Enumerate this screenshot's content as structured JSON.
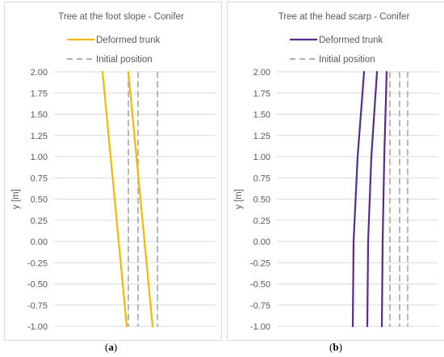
{
  "chart_data": [
    {
      "type": "line",
      "panel_label": "a",
      "title": "Tree at the foot slope - Conifer",
      "ylabel": "y [m]",
      "ylim": [
        -1.0,
        2.0
      ],
      "yticks": [
        "2.00",
        "1.75",
        "1.50",
        "1.25",
        "1.00",
        "0.75",
        "0.50",
        "0.25",
        "0.00",
        "-0.25",
        "-0.50",
        "-0.75",
        "-1.00"
      ],
      "xlim": [
        -1.0,
        1.0
      ],
      "legend_position": "top",
      "grid": true,
      "series": [
        {
          "name": "Deformed trunk",
          "color": "#F5B800",
          "dash": "solid",
          "lines": [
            {
              "x": [
                -0.4,
                -0.3,
                -0.2,
                -0.1
              ],
              "y": [
                2.0,
                1.0,
                0.0,
                -1.0
              ]
            },
            {
              "x": [
                -0.08,
                0.02,
                0.12,
                0.22
              ],
              "y": [
                2.0,
                1.0,
                0.0,
                -1.0
              ]
            }
          ]
        },
        {
          "name": "Initial position",
          "color": "#A6A6A6",
          "dash": "dashed",
          "lines": [
            {
              "x": [
                -0.08,
                -0.08
              ],
              "y": [
                2.0,
                -1.0
              ]
            },
            {
              "x": [
                0.04,
                0.04
              ],
              "y": [
                2.0,
                -1.0
              ]
            },
            {
              "x": [
                0.28,
                0.28
              ],
              "y": [
                2.0,
                -1.0
              ]
            }
          ]
        }
      ]
    },
    {
      "type": "line",
      "panel_label": "b",
      "title": "Tree at the head scarp  - Conifer",
      "ylabel": "y [m]",
      "ylim": [
        -1.0,
        2.0
      ],
      "yticks": [
        "2.00",
        "1.75",
        "1.50",
        "1.25",
        "1.00",
        "0.75",
        "0.50",
        "0.25",
        "0.00",
        "-0.25",
        "-0.50",
        "-0.75",
        "-1.00"
      ],
      "xlim": [
        -1.0,
        1.0
      ],
      "legend_position": "top",
      "grid": true,
      "series": [
        {
          "name": "Deformed trunk",
          "color": "#5B2A8C",
          "dash": "solid",
          "lines": [
            {
              "x": [
                0.08,
                0.0,
                -0.05,
                -0.06
              ],
              "y": [
                2.0,
                1.0,
                0.0,
                -1.0
              ]
            },
            {
              "x": [
                0.24,
                0.17,
                0.13,
                0.12
              ],
              "y": [
                2.0,
                1.0,
                0.0,
                -1.0
              ]
            },
            {
              "x": [
                0.36,
                0.33,
                0.31,
                0.3
              ],
              "y": [
                2.0,
                1.0,
                0.0,
                -1.0
              ]
            }
          ]
        },
        {
          "name": "Initial position",
          "color": "#A6A6A6",
          "dash": "dashed",
          "lines": [
            {
              "x": [
                0.4,
                0.4
              ],
              "y": [
                2.0,
                -1.0
              ]
            },
            {
              "x": [
                0.52,
                0.52
              ],
              "y": [
                2.0,
                -1.0
              ]
            },
            {
              "x": [
                0.62,
                0.62
              ],
              "y": [
                2.0,
                -1.0
              ]
            }
          ]
        }
      ]
    }
  ]
}
